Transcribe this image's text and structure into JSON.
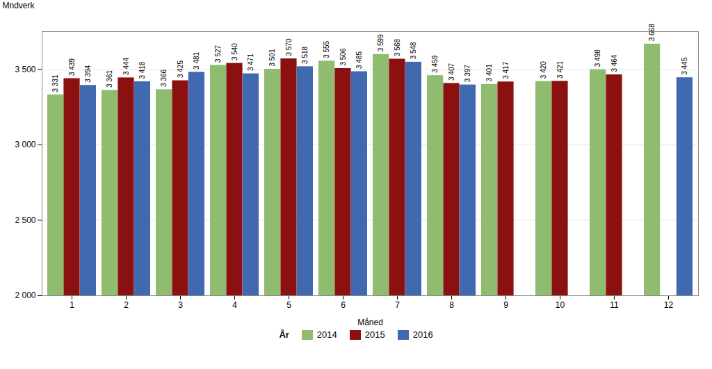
{
  "chart_data": {
    "type": "bar",
    "xlabel": "Måned",
    "ylabel": "Mndverk",
    "categories": [
      "1",
      "2",
      "3",
      "4",
      "5",
      "6",
      "7",
      "8",
      "9",
      "10",
      "11",
      "12"
    ],
    "series": [
      {
        "name": "2014",
        "color": "#8fbc6e",
        "values": [
          3331,
          3361,
          3366,
          3527,
          3501,
          3555,
          3599,
          3459,
          3401,
          3420,
          3498,
          3668
        ],
        "value_labels": [
          "3 331",
          "3 361",
          "3 366",
          "3 527",
          "3 501",
          "3 555",
          "3 599",
          "3 459",
          "3 401",
          "3 420",
          "3 498",
          "3 668"
        ]
      },
      {
        "name": "2015",
        "color": "#8b1010",
        "values": [
          3439,
          3444,
          3425,
          3540,
          3570,
          3506,
          3568,
          3407,
          3417,
          3421,
          3464,
          null
        ],
        "value_labels": [
          "3 439",
          "3 444",
          "3 425",
          "3 540",
          "3 570",
          "3 506",
          "3 568",
          "3 407",
          "3 417",
          "3 421",
          "3 464",
          null
        ]
      },
      {
        "name": "2016",
        "color": "#4169b0",
        "values": [
          3394,
          3418,
          3481,
          3471,
          3518,
          3485,
          3548,
          3397,
          null,
          null,
          null,
          3445
        ],
        "value_labels": [
          "3 394",
          "3 418",
          "3 481",
          "3 471",
          "3 518",
          "3 485",
          "3 548",
          "3 397",
          null,
          null,
          null,
          "3 445"
        ]
      }
    ],
    "ylim": [
      2000,
      3750
    ],
    "yticks": [
      {
        "value": 2000,
        "label": "2 000"
      },
      {
        "value": 2500,
        "label": "2 500"
      },
      {
        "value": 3000,
        "label": "3 000"
      },
      {
        "value": 3500,
        "label": "3 500"
      }
    ],
    "grid": true,
    "data_labels": true,
    "legend": "bottom",
    "legend_title": "År"
  }
}
